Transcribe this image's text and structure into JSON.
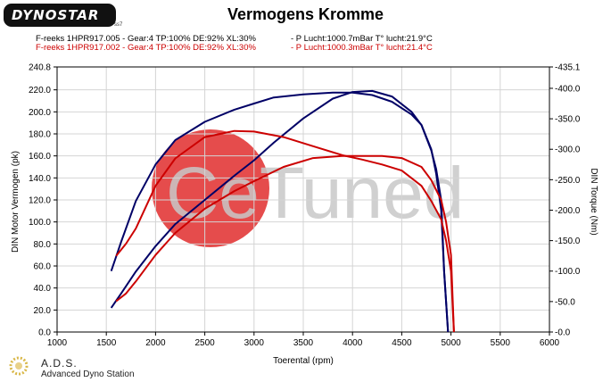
{
  "header": {
    "logo_text": "DYNOSTAR",
    "logo_sub": "ss7",
    "title": "Vermogens Kromme",
    "legend": [
      {
        "left": "F-reeks 1HPR917.005 - Gear:4 TP:100% DE:92% XL:30%",
        "right": "- P Lucht:1000.7mBar T° lucht:21.9°C",
        "color": "#000000"
      },
      {
        "left": "F-reeks 1HPR917.002 - Gear:4 TP:100% DE:92% XL:30%",
        "right": "- P Lucht:1000.3mBar T° lucht:21.4°C",
        "color": "#cc0000"
      }
    ]
  },
  "footer": {
    "name": "A.D.S.",
    "sub": "Advanced Dyno Station"
  },
  "watermark": {
    "text": "CeTuned",
    "circle_color": "#e23838"
  },
  "chart_data": {
    "type": "line",
    "title": "Vermogens Kromme",
    "xlabel": "Toerental (rpm)",
    "ylabel": "DIN Motor Vermogen (pk)",
    "y2label": "DIN Torque (Nm)",
    "xlim": [
      1000,
      6000
    ],
    "xticks": [
      "1000",
      "1500",
      "2000",
      "2500",
      "3000",
      "3500",
      "4000",
      "4500",
      "5000",
      "5500",
      "6000"
    ],
    "ylim": [
      0,
      240.8
    ],
    "yticks": [
      "0.0",
      "20.0",
      "40.0",
      "60.0",
      "80.0",
      "100.0",
      "120.0",
      "140.0",
      "160.0",
      "180.0",
      "200.0",
      "220.0",
      "240.8"
    ],
    "y2lim": [
      0,
      435.1
    ],
    "y2ticks": [
      "0.0",
      "50.0",
      "100.0",
      "150.0",
      "200.0",
      "250.0",
      "300.0",
      "350.0",
      "400.0",
      "435.1"
    ],
    "grid": true,
    "series": [
      {
        "name": "F-reeks 1HPR917.005 torque",
        "axis": "y2",
        "color": "#000066",
        "x": [
          1550,
          1650,
          1800,
          2000,
          2200,
          2500,
          2800,
          3000,
          3200,
          3500,
          3800,
          4000,
          4200,
          4400,
          4600,
          4700,
          4800,
          4850,
          4900,
          4930,
          4970
        ],
        "y": [
          100,
          148,
          215,
          275,
          315,
          345,
          365,
          375,
          385,
          390,
          393,
          393,
          389,
          378,
          357,
          340,
          300,
          260,
          200,
          100,
          0
        ]
      },
      {
        "name": "F-reeks 1HPR917.005 power",
        "axis": "y",
        "color": "#000066",
        "x": [
          1550,
          1650,
          1800,
          2000,
          2200,
          2500,
          2800,
          3000,
          3200,
          3500,
          3800,
          4000,
          4200,
          4400,
          4600,
          4700,
          4800,
          4850,
          4900,
          4930,
          4970
        ],
        "y": [
          22,
          35,
          55,
          78,
          98,
          120,
          142,
          156,
          172,
          194,
          212,
          218,
          219,
          214,
          200,
          188,
          165,
          148,
          120,
          55,
          0
        ]
      },
      {
        "name": "F-reeks 1HPR917.002 torque",
        "axis": "y2",
        "color": "#cc0000",
        "x": [
          1600,
          1700,
          1800,
          2000,
          2200,
          2500,
          2800,
          3000,
          3300,
          3600,
          3900,
          4100,
          4300,
          4500,
          4700,
          4800,
          4900,
          4950,
          5000,
          5030
        ],
        "y": [
          125,
          145,
          170,
          240,
          285,
          320,
          330,
          329,
          320,
          305,
          290,
          283,
          275,
          265,
          240,
          215,
          185,
          150,
          100,
          0
        ]
      },
      {
        "name": "F-reeks 1HPR917.002 power",
        "axis": "y",
        "color": "#cc0000",
        "x": [
          1600,
          1700,
          1800,
          2000,
          2200,
          2500,
          2800,
          3000,
          3300,
          3600,
          3900,
          4100,
          4300,
          4500,
          4700,
          4800,
          4900,
          4950,
          5000,
          5030
        ],
        "y": [
          28,
          35,
          46,
          70,
          90,
          112,
          128,
          137,
          150,
          158,
          160,
          160,
          160,
          158,
          150,
          138,
          120,
          100,
          70,
          0
        ]
      }
    ]
  }
}
